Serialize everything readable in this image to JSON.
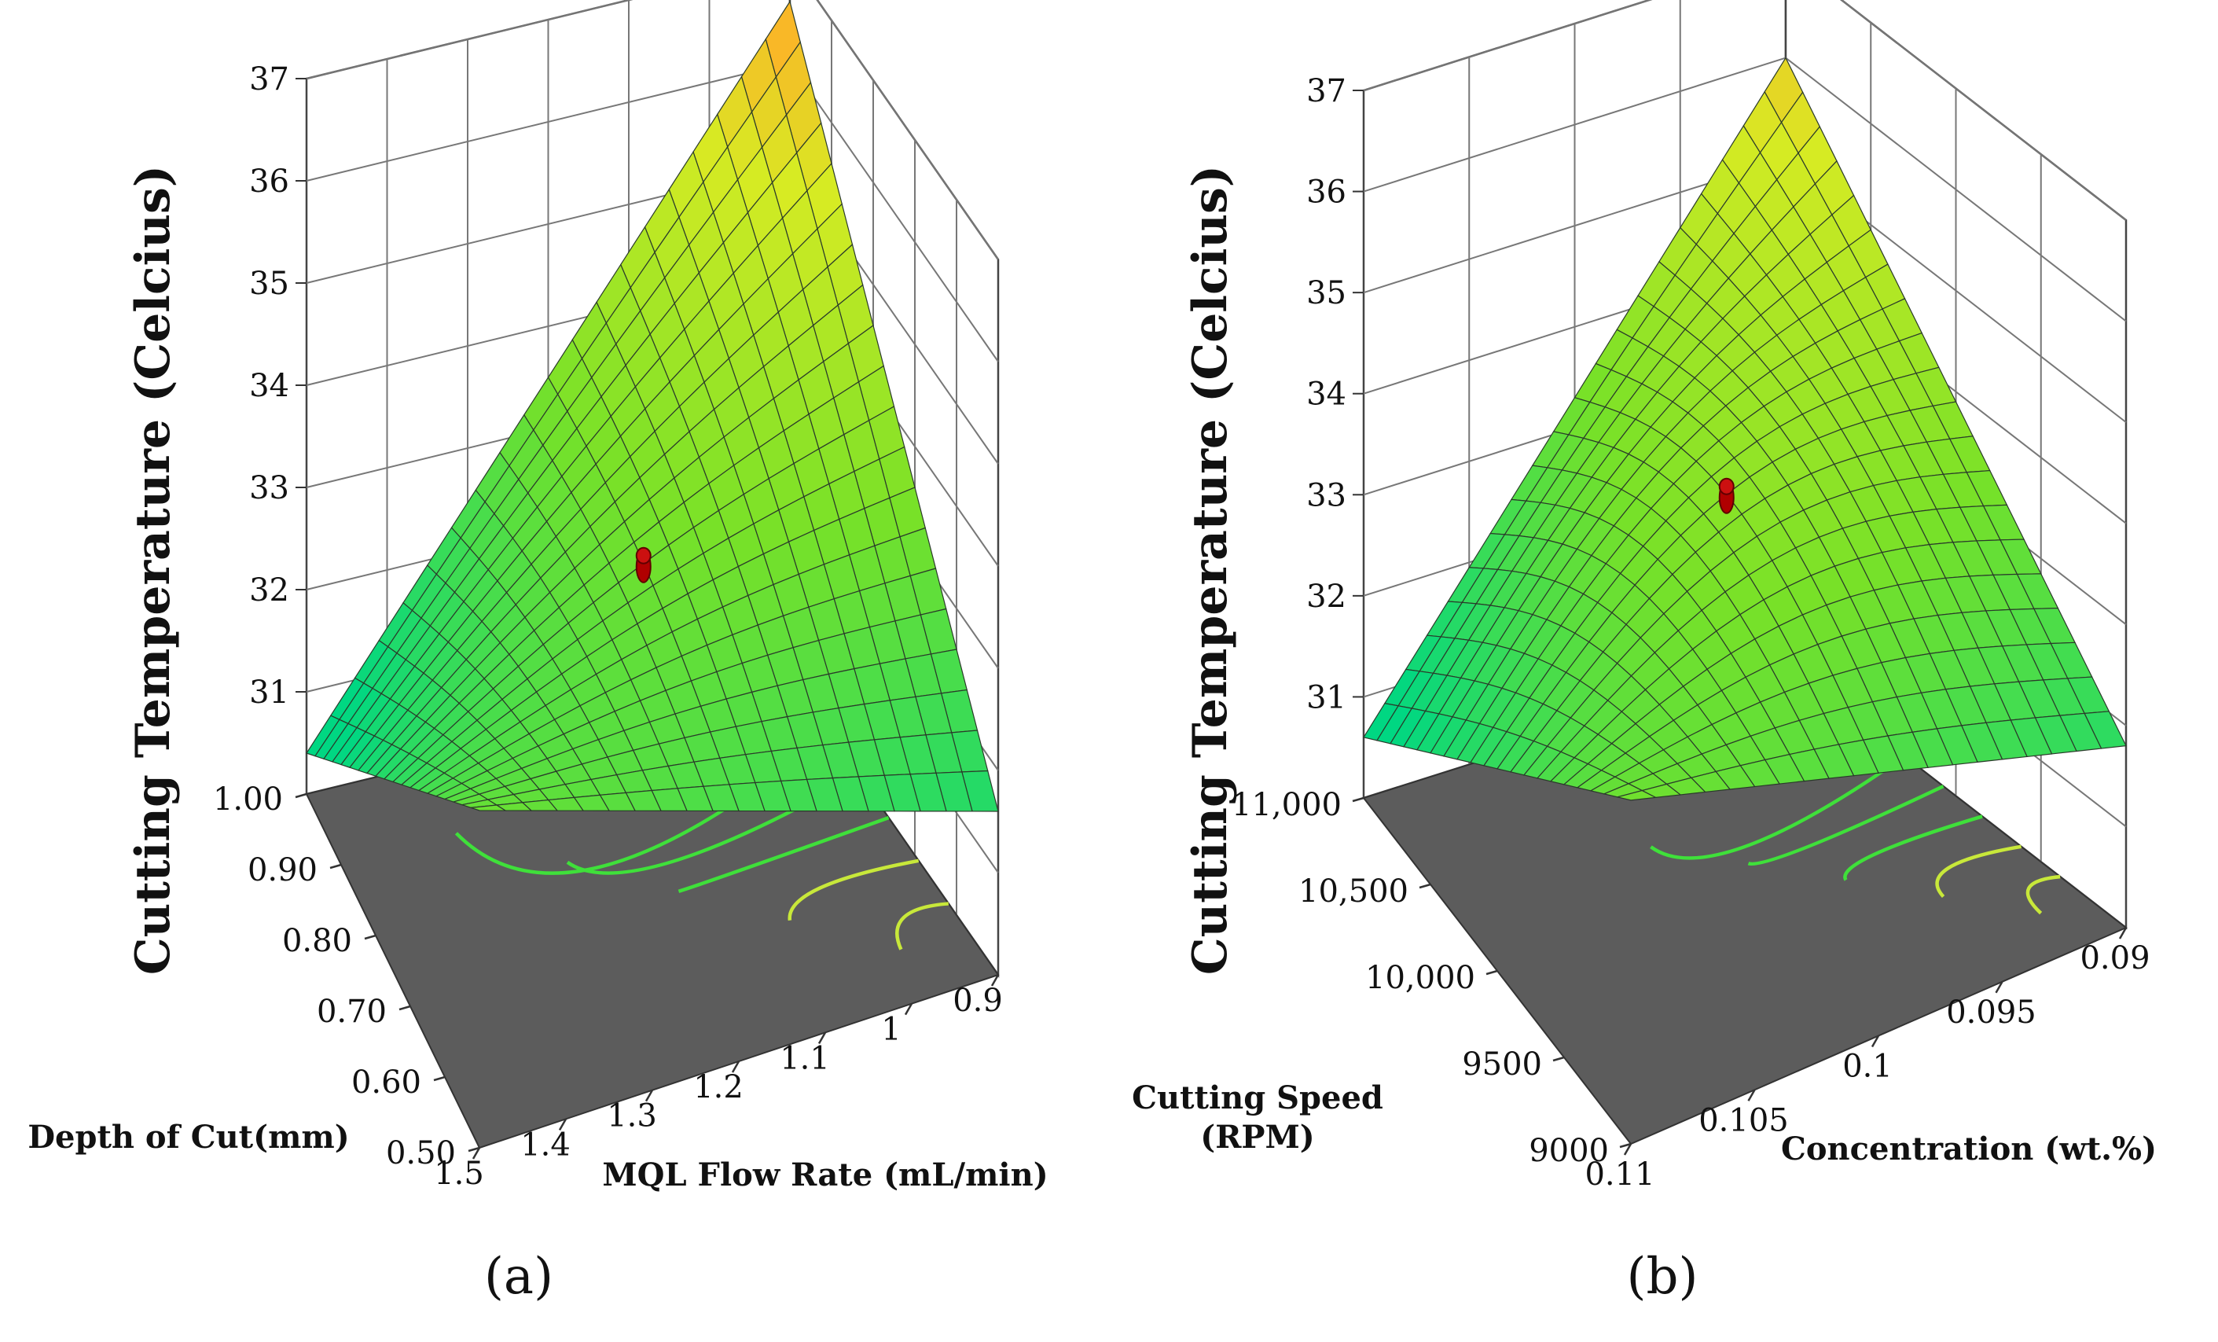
{
  "chart_data": [
    {
      "type": "surface3d",
      "panel_label": "(a)",
      "zlabel": "Cutting  Temperature  (Celcius)",
      "z_ticks": [
        "31",
        "32",
        "33",
        "34",
        "35",
        "36",
        "37"
      ],
      "zlim": [
        30,
        37
      ],
      "xlabel": "MQL Flow Rate (mL/min)",
      "x_ticks": [
        "1.5",
        "1.4",
        "1.3",
        "1.2",
        "1.1",
        "1",
        "0.9"
      ],
      "x_range": [
        1.5,
        0.9
      ],
      "ylabel": "Depth of Cut(mm)",
      "y_ticks": [
        "0.50",
        "0.60",
        "0.70",
        "0.80",
        "0.90",
        "1.00"
      ],
      "y_range": [
        0.5,
        1.0
      ],
      "surface_corners": {
        "flow_1.5_doc_1.00": 30.4,
        "flow_1.5_doc_0.50": 33.3,
        "flow_0.9_doc_0.50": 31.6,
        "flow_0.9_doc_1.00": 36.6
      },
      "center_point": {
        "flow_rate": 1.2,
        "depth_of_cut": 0.75,
        "temperature": 33.2
      },
      "contours": 5
    },
    {
      "type": "surface3d",
      "panel_label": "(b)",
      "zlabel": "Cutting  Temperature  (Celcius)",
      "z_ticks": [
        "31",
        "32",
        "33",
        "34",
        "35",
        "36",
        "37"
      ],
      "zlim": [
        30,
        37
      ],
      "xlabel": "Concentration (wt.%)",
      "x_ticks": [
        "0.11",
        "0.105",
        "0.1",
        "0.095",
        "0.09"
      ],
      "x_range": [
        0.11,
        0.09
      ],
      "ylabel": "Cutting Speed\n(RPM)",
      "y_ticks": [
        "9000",
        "9500",
        "10,000",
        "10,500",
        "11,000"
      ],
      "y_range": [
        9000,
        11000
      ],
      "surface_corners": {
        "conc_0.11_rpm_11000": 30.6,
        "conc_0.11_rpm_9000": 33.4,
        "conc_0.09_rpm_9000": 31.8,
        "conc_0.09_rpm_11000": 36.0
      },
      "center_point": {
        "concentration": 0.1,
        "cutting_speed": 10000,
        "temperature": 33.6
      },
      "contours": 5
    }
  ]
}
